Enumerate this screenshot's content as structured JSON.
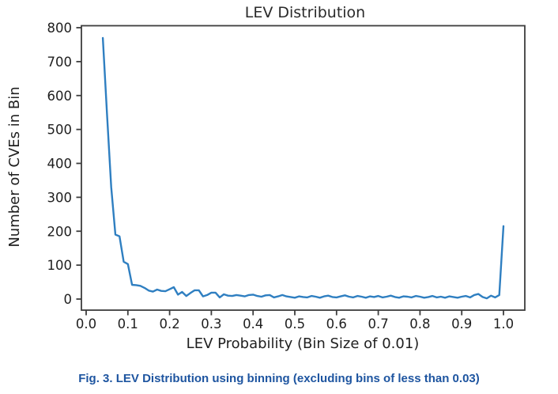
{
  "caption": "Fig. 3. LEV Distribution using binning (excluding bins of less than 0.03)",
  "colors": {
    "line": "#2f7fc1",
    "axis": "#3d3d3d",
    "tick_text": "#1f1f1f",
    "caption": "#1e55a0"
  },
  "chart_data": {
    "type": "line",
    "title": "LEV Distribution",
    "xlabel": "LEV Probability (Bin Size of 0.01)",
    "ylabel": "Number of CVEs in Bin",
    "grid": false,
    "legend": null,
    "xlim": [
      -0.011,
      1.049
    ],
    "ylim": [
      -33,
      807
    ],
    "xticks": [
      0.0,
      0.1,
      0.2,
      0.3,
      0.4,
      0.5,
      0.6,
      0.7,
      0.8,
      0.9,
      1.0
    ],
    "xtick_labels": [
      "0.0",
      "0.1",
      "0.2",
      "0.3",
      "0.4",
      "0.5",
      "0.6",
      "0.7",
      "0.8",
      "0.9",
      "1.0"
    ],
    "yticks": [
      0,
      100,
      200,
      300,
      400,
      500,
      600,
      700,
      800
    ],
    "ytick_labels": [
      "0",
      "100",
      "200",
      "300",
      "400",
      "500",
      "600",
      "700",
      "800"
    ],
    "x": [
      0.04,
      0.05,
      0.06,
      0.07,
      0.08,
      0.09,
      0.1,
      0.11,
      0.12,
      0.13,
      0.14,
      0.15,
      0.16,
      0.17,
      0.18,
      0.19,
      0.2,
      0.21,
      0.22,
      0.23,
      0.24,
      0.25,
      0.26,
      0.27,
      0.28,
      0.29,
      0.3,
      0.31,
      0.32,
      0.33,
      0.34,
      0.35,
      0.36,
      0.37,
      0.38,
      0.39,
      0.4,
      0.41,
      0.42,
      0.43,
      0.44,
      0.45,
      0.46,
      0.47,
      0.48,
      0.49,
      0.5,
      0.51,
      0.52,
      0.53,
      0.54,
      0.55,
      0.56,
      0.57,
      0.58,
      0.59,
      0.6,
      0.61,
      0.62,
      0.63,
      0.64,
      0.65,
      0.66,
      0.67,
      0.68,
      0.69,
      0.7,
      0.71,
      0.72,
      0.73,
      0.74,
      0.75,
      0.76,
      0.77,
      0.78,
      0.79,
      0.8,
      0.81,
      0.82,
      0.83,
      0.84,
      0.85,
      0.86,
      0.87,
      0.88,
      0.89,
      0.9,
      0.91,
      0.92,
      0.93,
      0.94,
      0.95,
      0.96,
      0.97,
      0.98,
      0.99,
      1.0
    ],
    "values": [
      770,
      545,
      330,
      190,
      185,
      110,
      103,
      42,
      41,
      39,
      33,
      25,
      22,
      28,
      24,
      23,
      29,
      35,
      13,
      21,
      9,
      18,
      26,
      26,
      8,
      12,
      19,
      19,
      5,
      14,
      10,
      9,
      12,
      10,
      8,
      12,
      13,
      9,
      7,
      11,
      12,
      5,
      8,
      12,
      8,
      6,
      4,
      8,
      6,
      5,
      9,
      7,
      4,
      8,
      10,
      6,
      5,
      8,
      11,
      7,
      5,
      9,
      7,
      4,
      8,
      6,
      9,
      5,
      7,
      10,
      6,
      4,
      8,
      7,
      5,
      9,
      7,
      4,
      6,
      9,
      5,
      7,
      4,
      8,
      6,
      4,
      7,
      9,
      5,
      12,
      15,
      6,
      2,
      10,
      5,
      12,
      215
    ]
  }
}
